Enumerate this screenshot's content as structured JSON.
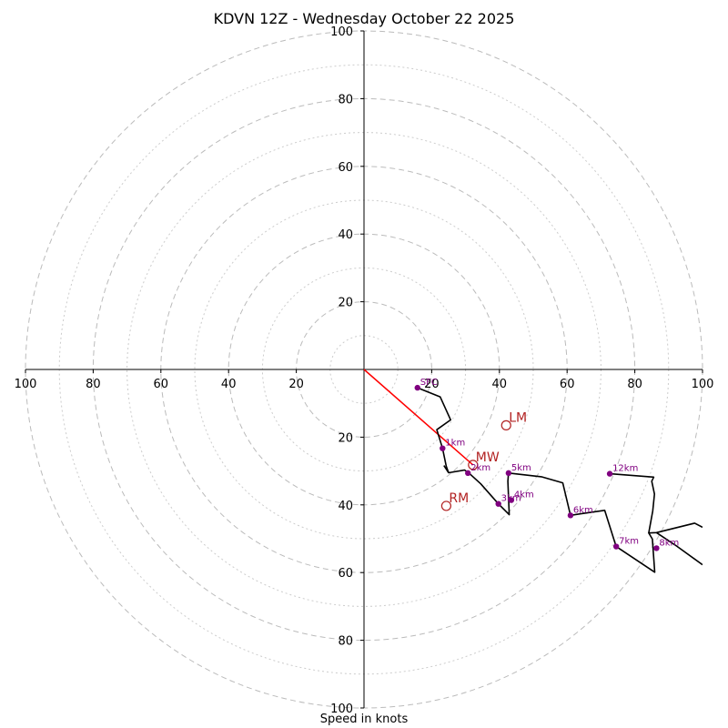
{
  "chart_data": {
    "type": "hodograph",
    "title": "KDVN 12Z - Wednesday October 22 2025",
    "xlabel": "Speed in knots",
    "units": "knots",
    "range": [
      -100,
      100
    ],
    "ring_step_major": 20,
    "ring_step_minor": 10,
    "axis_tick_labels": [
      "100",
      "80",
      "60",
      "40",
      "20",
      "20",
      "40",
      "60",
      "80",
      "100"
    ],
    "axis_ticks": [
      -100,
      -80,
      -60,
      -40,
      -20,
      20,
      40,
      60,
      80,
      100
    ],
    "trace": [
      [
        15.8,
        -5.4
      ],
      [
        22.5,
        -8.1
      ],
      [
        25.6,
        -14.9
      ],
      [
        21.5,
        -17.8
      ],
      [
        23.2,
        -23.3
      ],
      [
        24.3,
        -28.6
      ],
      [
        25,
        -30.5
      ],
      [
        29.7,
        -29.7
      ],
      [
        31.1,
        -30.7
      ],
      [
        34.5,
        -33.8
      ],
      [
        39.7,
        -39.7
      ],
      [
        42.9,
        -42.9
      ],
      [
        42.5,
        -33
      ],
      [
        42.7,
        -30.6
      ],
      [
        52.4,
        -31.7
      ],
      [
        58.7,
        -33.5
      ],
      [
        61,
        -43.1
      ],
      [
        71.1,
        -41.6
      ],
      [
        74.5,
        -52.3
      ],
      [
        85.9,
        -59.9
      ],
      [
        85.2,
        -50.1
      ],
      [
        84.1,
        -48.3
      ],
      [
        86.4,
        -48.2
      ],
      [
        97.7,
        -45.4
      ],
      [
        100,
        -46.6
      ]
    ],
    "trace_branches": [
      [
        [
          84.1,
          -48.3
        ],
        [
          85.3,
          -41.8
        ],
        [
          85.8,
          -36.8
        ],
        [
          85,
          -33
        ],
        [
          85.6,
          -31.8
        ],
        [
          72.6,
          -30.8
        ]
      ],
      [
        [
          86.4,
          -48.2
        ],
        [
          92.1,
          -52
        ],
        [
          100,
          -57.7
        ]
      ],
      [
        [
          25,
          -30.5
        ],
        [
          23.6,
          -28.4
        ]
      ]
    ],
    "height_markers": [
      {
        "label": "SFC",
        "u": 15.8,
        "v": -5.4
      },
      {
        "label": "1km",
        "u": 23.2,
        "v": -23.3
      },
      {
        "label": "2km",
        "u": 30.7,
        "v": -30.6
      },
      {
        "label": "3km",
        "u": 39.7,
        "v": -39.7
      },
      {
        "label": "4km",
        "u": 43.5,
        "v": -38.6
      },
      {
        "label": "5km",
        "u": 42.7,
        "v": -30.6
      },
      {
        "label": "6km",
        "u": 61,
        "v": -43.1
      },
      {
        "label": "7km",
        "u": 74.5,
        "v": -52.3
      },
      {
        "label": "8km",
        "u": 86.4,
        "v": -52.8
      },
      {
        "label": "12km",
        "u": 72.6,
        "v": -30.8
      }
    ],
    "motion_markers": [
      {
        "label": "LM",
        "u": 42,
        "v": -16.5
      },
      {
        "label": "MW",
        "u": 32.2,
        "v": -28.2
      },
      {
        "label": "RM",
        "u": 24.3,
        "v": -40.3
      }
    ],
    "shear_vector": {
      "from": [
        0,
        0
      ],
      "to": [
        32.2,
        -28.2
      ]
    },
    "colors": {
      "trace": "#000000",
      "height_marker": "#800080",
      "motion_marker": "#b22222",
      "shear_vector": "#ff0000",
      "rings": "#bbbbbb",
      "minor_rings": "#cccccc"
    }
  }
}
